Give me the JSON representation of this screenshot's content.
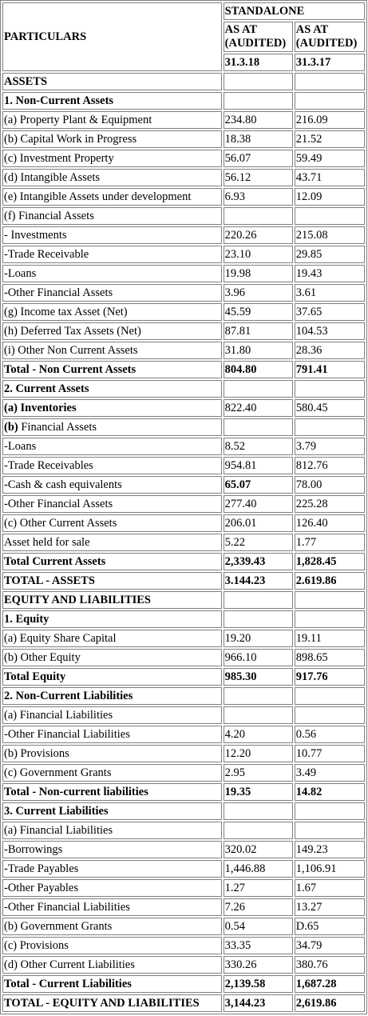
{
  "header": {
    "particulars": "PARTICULARS",
    "standalone": "STANDALONE",
    "col1_label": "AS AT (AUDITED)",
    "col2_label": "AS AT (AUDITED)",
    "col1_date": "31.3.18",
    "col2_date": "31.3.17"
  },
  "rows": [
    {
      "label": "ASSETS",
      "v1": "",
      "v2": "",
      "bold": true
    },
    {
      "label": "1. Non-Current Assets",
      "v1": "",
      "v2": "",
      "bold": true
    },
    {
      "label": "(a) Property Plant & Equipment",
      "v1": "234.80",
      "v2": "216.09"
    },
    {
      "label": "(b) Capital Work in Progress",
      "v1": "18.38",
      "v2": "21.52"
    },
    {
      "label": "(c) Investment Property",
      "v1": "56.07",
      "v2": "59.49"
    },
    {
      "label": "(d) Intangible Assets",
      "v1": "56.12",
      "v2": "43.71"
    },
    {
      "label": "(e) Intangible Assets under development",
      "v1": "6.93",
      "v2": "12.09"
    },
    {
      "label": "(f) Financial Assets",
      "v1": "",
      "v2": ""
    },
    {
      "label": "- Investments",
      "v1": "220.26",
      "v2": "215.08"
    },
    {
      "label": "-Trade Receivable",
      "v1": "23.10",
      "v2": "29.85"
    },
    {
      "label": "-Loans",
      "v1": "19.98",
      "v2": "19.43"
    },
    {
      "label": "-Other Financial Assets",
      "v1": "3.96",
      "v2": "3.61"
    },
    {
      "label": "(g) Income tax Asset (Net)",
      "v1": "45.59",
      "v2": "37.65"
    },
    {
      "label": "(h) Deferred Tax Assets (Net)",
      "v1": "87.81",
      "v2": "104.53"
    },
    {
      "label": "(i) Other Non Current Assets",
      "v1": "31.80",
      "v2": "28.36"
    },
    {
      "label": "Total - Non Current Assets",
      "v1": "804.80",
      "v2": "791.41",
      "bold": true
    },
    {
      "label": "2. Current Assets",
      "v1": "",
      "v2": "",
      "bold": true
    },
    {
      "label": "(a) Inventories",
      "v1": "822.40",
      "v2": "580.45",
      "labelBold": true
    },
    {
      "label": "(b) Financial Assets",
      "v1": "",
      "v2": "",
      "prefixBold": "(b)"
    },
    {
      "label": "-Loans",
      "v1": "8.52",
      "v2": "3.79"
    },
    {
      "label": "-Trade Receivables",
      "v1": "954.81",
      "v2": "812.76"
    },
    {
      "label": "-Cash & cash equivalents",
      "v1": "65.07",
      "v2": "78.00",
      "v1Bold": true
    },
    {
      "label": "-Other Financial Assets",
      "v1": "277.40",
      "v2": "225.28"
    },
    {
      "label": "(c) Other Current Assets",
      "v1": "206.01",
      "v2": "126.40"
    },
    {
      "label": "Asset held for sale",
      "v1": "5.22",
      "v2": "1.77"
    },
    {
      "label": "Total Current Assets",
      "v1": "2,339.43",
      "v2": "1,828.45",
      "bold": true
    },
    {
      "label": "TOTAL - ASSETS",
      "v1": "3.144.23",
      "v2": "2.619.86",
      "bold": true
    },
    {
      "label": "EQUITY AND LIABILITIES",
      "v1": "",
      "v2": "",
      "bold": true
    },
    {
      "label": "1. Equity",
      "v1": "",
      "v2": "",
      "bold": true
    },
    {
      "label": "(a) Equity Share Capital",
      "v1": "19.20",
      "v2": "19.11"
    },
    {
      "label": "(b) Other Equity",
      "v1": "966.10",
      "v2": "898.65"
    },
    {
      "label": "Total Equity",
      "v1": "985.30",
      "v2": "917.76",
      "bold": true
    },
    {
      "label": "2. Non-Current Liabilities",
      "v1": "",
      "v2": "",
      "bold": true
    },
    {
      "label": "(a) Financial Liabilities",
      "v1": "",
      "v2": ""
    },
    {
      "label": "-Other Financial Liabilities",
      "v1": "4.20",
      "v2": "0.56"
    },
    {
      "label": "(b) Provisions",
      "v1": "12.20",
      "v2": "10.77"
    },
    {
      "label": "(c) Government Grants",
      "v1": "2.95",
      "v2": "3.49"
    },
    {
      "label": "Total - Non-current liabilities",
      "v1": "19.35",
      "v2": "14.82",
      "bold": true
    },
    {
      "label": "3. Current Liabilities",
      "v1": "",
      "v2": "",
      "bold": true
    },
    {
      "label": "(a) Financial Liabilities",
      "v1": "",
      "v2": ""
    },
    {
      "label": "-Borrowings",
      "v1": "320.02",
      "v2": "149.23"
    },
    {
      "label": "-Trade Payables",
      "v1": "1,446.88",
      "v2": "1,106.91"
    },
    {
      "label": "-Other Payables",
      "v1": "1.27",
      "v2": "1.67"
    },
    {
      "label": "-Other Financial Liabilities",
      "v1": "7.26",
      "v2": "13.27"
    },
    {
      "label": "(b) Government Grants",
      "v1": "0.54",
      "v2": "D.65"
    },
    {
      "label": "(c) Provisions",
      "v1": "33.35",
      "v2": "34.79"
    },
    {
      "label": "(d) Other Current Liabilities",
      "v1": "330.26",
      "v2": "380.76"
    },
    {
      "label": "Total - Current Liabilities",
      "v1": "2,139.58",
      "v2": "1,687.28",
      "bold": true
    },
    {
      "label": "TOTAL - EQUITY AND LIABILITIES",
      "v1": "3,144.23",
      "v2": "2,619.86",
      "bold": true
    }
  ]
}
